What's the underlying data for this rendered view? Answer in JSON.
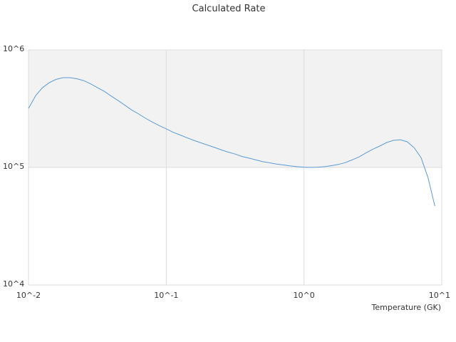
{
  "chart_data": {
    "type": "line",
    "title": "Calculated Rate",
    "xlabel": "Temperature (GK)",
    "ylabel": "",
    "x_scale": "log",
    "y_scale": "log",
    "xlim": [
      0.01,
      10
    ],
    "ylim": [
      10000,
      1000000
    ],
    "x_ticks": [
      {
        "value": 0.01,
        "label": "10^-2"
      },
      {
        "value": 0.1,
        "label": "10^-1"
      },
      {
        "value": 1,
        "label": "10^0"
      },
      {
        "value": 10,
        "label": "10^1"
      }
    ],
    "y_ticks": [
      {
        "value": 10000,
        "label": "10^4"
      },
      {
        "value": 100000,
        "label": "10^5"
      },
      {
        "value": 1000000,
        "label": "10^6"
      }
    ],
    "band_color": "#f2f2f2",
    "series": [
      {
        "color": "#5b9bd5",
        "x": [
          0.01,
          0.0113,
          0.0126,
          0.0141,
          0.0158,
          0.0178,
          0.02,
          0.0224,
          0.0251,
          0.0282,
          0.0316,
          0.0355,
          0.0398,
          0.0447,
          0.0501,
          0.0562,
          0.0631,
          0.0708,
          0.0794,
          0.0891,
          0.1,
          0.1122,
          0.1259,
          0.1413,
          0.1585,
          0.1778,
          0.1995,
          0.2239,
          0.2512,
          0.2818,
          0.3162,
          0.3548,
          0.3981,
          0.4467,
          0.5012,
          0.5623,
          0.631,
          0.7079,
          0.7943,
          0.8913,
          1.0,
          1.122,
          1.259,
          1.413,
          1.585,
          1.778,
          1.995,
          2.239,
          2.512,
          2.818,
          3.162,
          3.548,
          3.981,
          4.467,
          5.012,
          5.623,
          6.31,
          7.079,
          7.943,
          8.913
        ],
        "y": [
          318000,
          410000,
          475000,
          525000,
          560000,
          580000,
          580000,
          568000,
          548000,
          515000,
          478000,
          444000,
          405000,
          371000,
          338000,
          308000,
          285000,
          262000,
          243000,
          227000,
          213000,
          199000,
          189000,
          179000,
          170000,
          162000,
          155000,
          148000,
          141000,
          135000,
          130000,
          124000,
          120000,
          116000,
          112000,
          109500,
          107000,
          105000,
          103000,
          101500,
          100500,
          100000,
          100500,
          101500,
          103500,
          106000,
          110000,
          116000,
          123000,
          133000,
          143000,
          152000,
          163000,
          170000,
          172000,
          165000,
          147000,
          121000,
          82000,
          47000
        ]
      }
    ]
  }
}
